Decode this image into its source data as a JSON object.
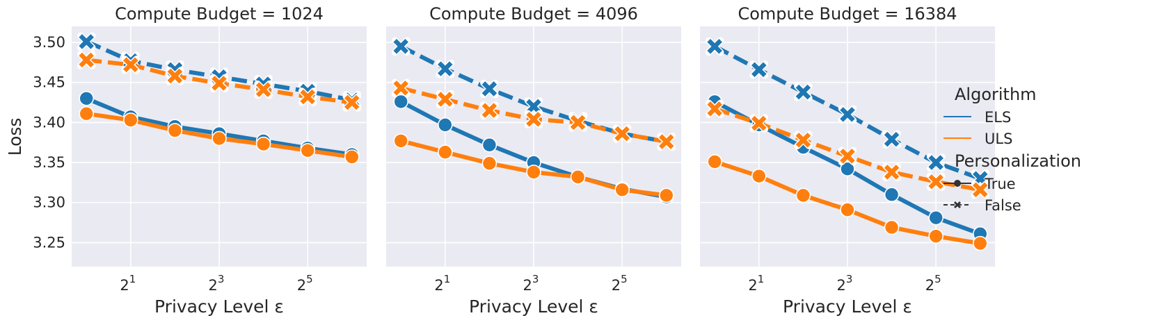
{
  "chart_data": {
    "type": "line",
    "ylabel": "Loss",
    "xlabel": "Privacy Level ε",
    "x": [
      1,
      2,
      4,
      8,
      16,
      32,
      64
    ],
    "xscale": "log2",
    "xticks": [
      {
        "value": 2,
        "base": "2",
        "exp": "1"
      },
      {
        "value": 8,
        "base": "2",
        "exp": "3"
      },
      {
        "value": 32,
        "base": "2",
        "exp": "5"
      }
    ],
    "ylim": [
      3.22,
      3.52
    ],
    "yticks": [
      3.25,
      3.3,
      3.35,
      3.4,
      3.45,
      3.5
    ],
    "ytick_labels": [
      "3.25",
      "3.30",
      "3.35",
      "3.40",
      "3.45",
      "3.50"
    ],
    "grid": true,
    "sharey": true,
    "legend": {
      "placement": "right",
      "hue_title": "Algorithm",
      "style_title": "Personalization",
      "hue_entries": [
        {
          "label": "ELS",
          "color": "#1f77b4"
        },
        {
          "label": "ULS",
          "color": "#ff7f0e"
        }
      ],
      "style_entries": [
        {
          "label": "True",
          "marker": "circle",
          "dash": "solid"
        },
        {
          "label": "False",
          "marker": "x",
          "dash": "dashed"
        }
      ]
    },
    "panels": [
      {
        "title": "Compute Budget = 1024",
        "series": [
          {
            "algorithm": "ELS",
            "personalization": "True",
            "values": [
              3.43,
              3.407,
              3.395,
              3.386,
              3.377,
              3.368,
              3.36
            ]
          },
          {
            "algorithm": "ULS",
            "personalization": "True",
            "values": [
              3.411,
              3.403,
              3.39,
              3.38,
              3.373,
              3.365,
              3.357
            ]
          },
          {
            "algorithm": "ELS",
            "personalization": "False",
            "values": [
              3.501,
              3.477,
              3.466,
              3.457,
              3.448,
              3.439,
              3.428
            ]
          },
          {
            "algorithm": "ULS",
            "personalization": "False",
            "values": [
              3.478,
              3.472,
              3.458,
              3.449,
              3.441,
              3.432,
              3.425
            ]
          }
        ]
      },
      {
        "title": "Compute Budget = 4096",
        "series": [
          {
            "algorithm": "ELS",
            "personalization": "True",
            "values": [
              3.426,
              3.397,
              3.372,
              3.35,
              3.332,
              3.317,
              3.307
            ]
          },
          {
            "algorithm": "ULS",
            "personalization": "True",
            "values": [
              3.377,
              3.363,
              3.349,
              3.338,
              3.332,
              3.316,
              3.309
            ]
          },
          {
            "algorithm": "ELS",
            "personalization": "False",
            "values": [
              3.495,
              3.467,
              3.442,
              3.42,
              3.402,
              3.386,
              3.376
            ]
          },
          {
            "algorithm": "ULS",
            "personalization": "False",
            "values": [
              3.443,
              3.429,
              3.415,
              3.404,
              3.4,
              3.386,
              3.376
            ]
          }
        ]
      },
      {
        "title": "Compute Budget = 16384",
        "series": [
          {
            "algorithm": "ELS",
            "personalization": "True",
            "values": [
              3.426,
              3.397,
              3.369,
              3.342,
              3.31,
              3.281,
              3.261
            ]
          },
          {
            "algorithm": "ULS",
            "personalization": "True",
            "values": [
              3.351,
              3.333,
              3.309,
              3.291,
              3.269,
              3.258,
              3.249
            ]
          },
          {
            "algorithm": "ELS",
            "personalization": "False",
            "values": [
              3.495,
              3.466,
              3.438,
              3.41,
              3.379,
              3.35,
              3.33
            ]
          },
          {
            "algorithm": "ULS",
            "personalization": "False",
            "values": [
              3.417,
              3.399,
              3.378,
              3.358,
              3.338,
              3.326,
              3.316
            ]
          }
        ]
      }
    ]
  }
}
